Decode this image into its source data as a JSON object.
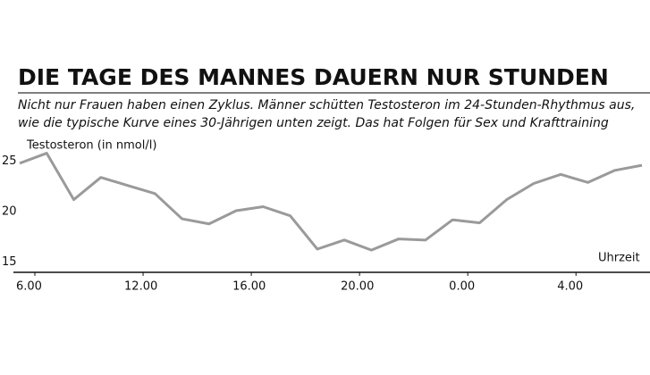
{
  "chart_data": {
    "type": "line",
    "title": "DIE TAGE DES MANNES DAUERN NUR STUNDEN",
    "subtitle": [
      "Nicht nur Frauen haben einen Zyklus. Männer schütten Testosteron im 24-Stunden-Rhythmus aus,",
      "wie die typische Kurve eines 30-Jährigen unten zeigt. Das hat Folgen für Sex und Krafttraining"
    ],
    "y_label": "Testosteron (in nmol/l)",
    "x_label": "Uhrzeit",
    "categories": [
      "6.00",
      null,
      null,
      null,
      "12.00",
      null,
      null,
      null,
      "16.00",
      null,
      null,
      null,
      "20.00",
      null,
      null,
      null,
      "0.00",
      null,
      null,
      null,
      "4.00",
      null,
      null,
      null
    ],
    "series": [
      {
        "color": "#9a9a9a",
        "values": [
          24.8,
          25.8,
          21.2,
          23.4,
          22.6,
          21.8,
          19.3,
          18.8,
          20.1,
          20.5,
          19.6,
          16.3,
          17.2,
          16.2,
          17.3,
          17.2,
          19.2,
          18.9,
          21.2,
          22.8,
          23.7,
          22.9,
          24.1,
          24.6
        ]
      }
    ],
    "ylim": [
      14,
      27
    ],
    "yticks": [
      15,
      20,
      25
    ]
  }
}
